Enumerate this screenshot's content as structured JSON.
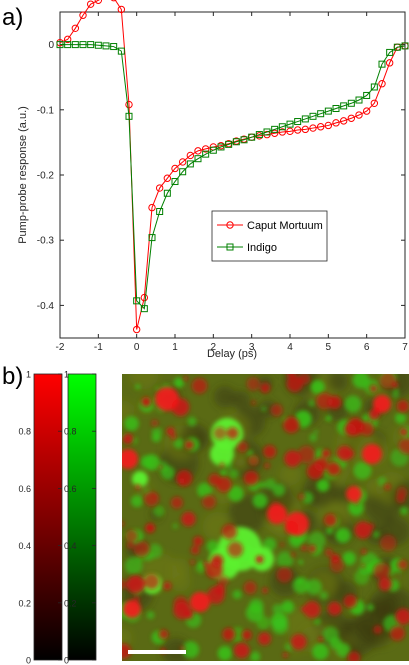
{
  "figure": {
    "panel_a_label": "a)",
    "panel_b_label": "b)"
  },
  "chart_data": [
    {
      "type": "line",
      "title": "",
      "xlabel": "Delay (ps)",
      "ylabel": "Pump-probe response (a.u.)",
      "xlim": [
        -2,
        7
      ],
      "ylim": [
        -0.45,
        0.05
      ],
      "xticks": [
        "-2",
        "-1",
        "0",
        "1",
        "2",
        "3",
        "4",
        "5",
        "6",
        "7"
      ],
      "yticks": [
        "0",
        "-0.1",
        "-0.2",
        "-0.3",
        "-0.4"
      ],
      "grid": false,
      "legend_position": "middle-right",
      "series": [
        {
          "name": "Caput Mortuum",
          "color": "#ff0000",
          "marker": "circle",
          "x": [
            -2,
            -1.8,
            -1.6,
            -1.4,
            -1.2,
            -1.0,
            -0.8,
            -0.6,
            -0.4,
            -0.2,
            0,
            0.2,
            0.4,
            0.6,
            0.8,
            1.0,
            1.2,
            1.4,
            1.6,
            1.8,
            2.0,
            2.2,
            2.4,
            2.6,
            2.8,
            3.0,
            3.2,
            3.4,
            3.6,
            3.8,
            4.0,
            4.2,
            4.4,
            4.6,
            4.8,
            5.0,
            5.2,
            5.4,
            5.6,
            5.8,
            6.0,
            6.2,
            6.4,
            6.6,
            6.8,
            7.0
          ],
          "y": [
            0.003,
            0.008,
            0.025,
            0.045,
            0.062,
            0.068,
            0.074,
            0.072,
            0.054,
            -0.092,
            -0.437,
            -0.388,
            -0.25,
            -0.22,
            -0.205,
            -0.19,
            -0.18,
            -0.17,
            -0.163,
            -0.16,
            -0.157,
            -0.155,
            -0.152,
            -0.148,
            -0.145,
            -0.142,
            -0.14,
            -0.138,
            -0.136,
            -0.134,
            -0.133,
            -0.131,
            -0.13,
            -0.128,
            -0.126,
            -0.124,
            -0.12,
            -0.117,
            -0.113,
            -0.108,
            -0.102,
            -0.09,
            -0.06,
            -0.028,
            -0.004,
            -0.002
          ]
        },
        {
          "name": "Indigo",
          "color": "#008000",
          "marker": "square",
          "x": [
            -2,
            -1.8,
            -1.6,
            -1.4,
            -1.2,
            -1.0,
            -0.8,
            -0.6,
            -0.4,
            -0.2,
            0,
            0.2,
            0.4,
            0.6,
            0.8,
            1.0,
            1.2,
            1.4,
            1.6,
            1.8,
            2.0,
            2.2,
            2.4,
            2.6,
            2.8,
            3.0,
            3.2,
            3.4,
            3.6,
            3.8,
            4.0,
            4.2,
            4.4,
            4.6,
            4.8,
            5.0,
            5.2,
            5.4,
            5.6,
            5.8,
            6.0,
            6.2,
            6.4,
            6.6,
            6.8,
            7.0
          ],
          "y": [
            0.0,
            0.0,
            0.0,
            0.0,
            0.0,
            -0.001,
            -0.002,
            -0.003,
            -0.01,
            -0.11,
            -0.393,
            -0.405,
            -0.296,
            -0.256,
            -0.228,
            -0.21,
            -0.195,
            -0.183,
            -0.175,
            -0.168,
            -0.162,
            -0.157,
            -0.153,
            -0.149,
            -0.146,
            -0.142,
            -0.138,
            -0.134,
            -0.13,
            -0.126,
            -0.122,
            -0.118,
            -0.114,
            -0.11,
            -0.106,
            -0.102,
            -0.098,
            -0.094,
            -0.09,
            -0.085,
            -0.078,
            -0.065,
            -0.03,
            -0.012,
            -0.004,
            -0.002
          ]
        }
      ]
    },
    {
      "type": "heatmap",
      "title": "",
      "description_colormaps": [
        "red",
        "green"
      ],
      "colorbars": [
        {
          "name": "red",
          "color": "#ff0000",
          "range": [
            0,
            1
          ],
          "ticks": [
            "0",
            "0.2",
            "0.4",
            "0.6",
            "0.8",
            "1"
          ]
        },
        {
          "name": "green",
          "color": "#00ff00",
          "range": [
            0,
            1
          ],
          "ticks": [
            "0",
            "0.2",
            "0.4",
            "0.6",
            "0.8",
            "1"
          ]
        }
      ]
    }
  ]
}
